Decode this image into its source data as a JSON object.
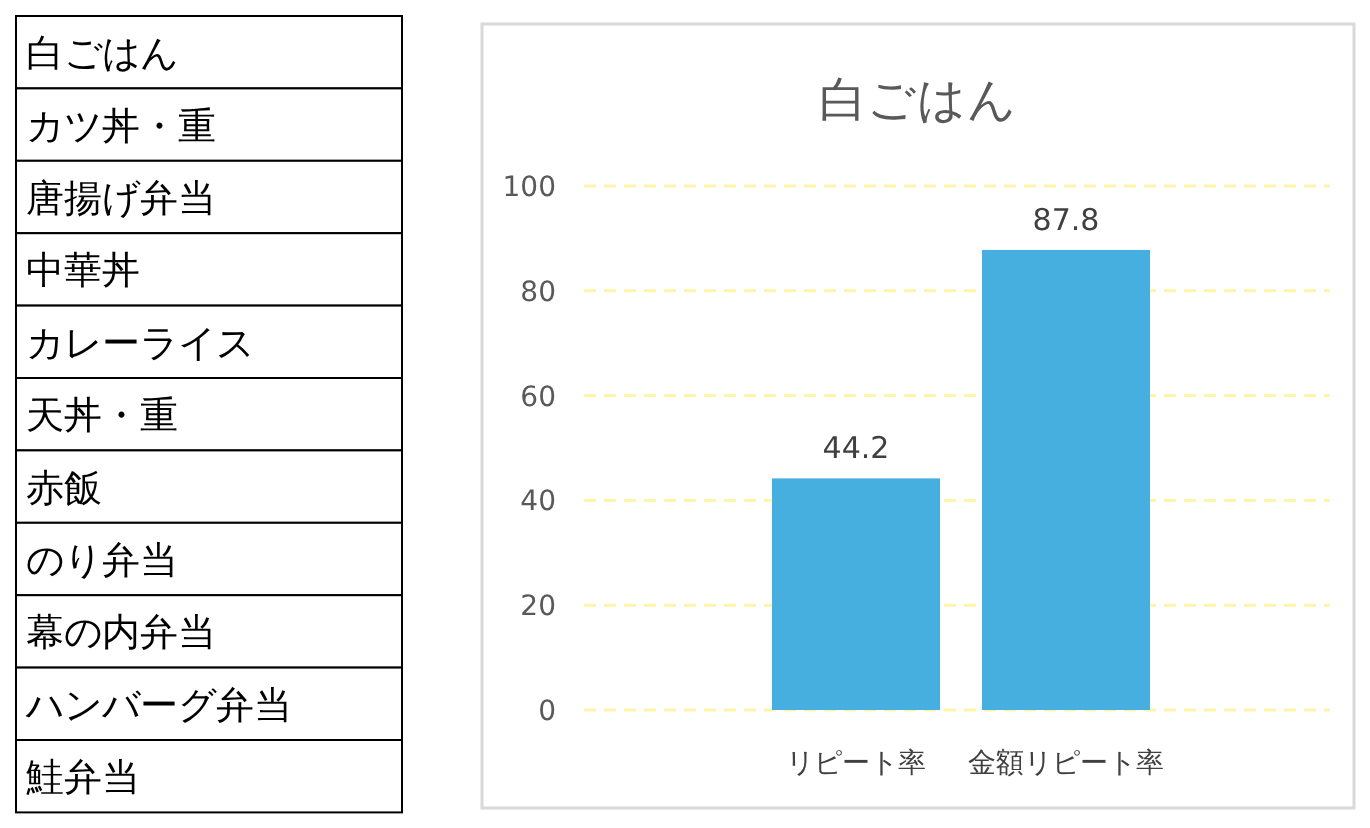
{
  "chart_data": [
    {
      "type": "other",
      "annotations": [
        "白ごはん",
        "カツ丼・重",
        "唐揚げ弁当",
        "中華丼",
        "カレーライス",
        "天丼・重",
        "赤飯",
        "のり弁当",
        "幕の内弁当",
        "ハンバーグ弁当",
        "鮭弁当"
      ]
    },
    {
      "type": "bar",
      "title": "白ごはん",
      "categories": [
        "リピート率",
        "金額リピート率"
      ],
      "values": [
        44.2,
        87.8
      ],
      "color": "#47aee0",
      "ylim": [
        0,
        100
      ],
      "yticks": [
        0,
        20,
        40,
        60,
        80,
        100
      ],
      "grid": "y",
      "data_labels": true
    }
  ]
}
